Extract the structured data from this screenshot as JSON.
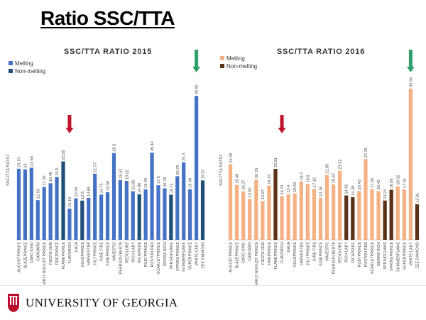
{
  "slide": {
    "title": "Ratio SSC/TTA",
    "footer_org": "UNIVERSITY OF GEORGIA"
  },
  "colors": {
    "2015_melting": "#4472C4",
    "2015_nonmelting": "#1F4E79",
    "2016_melting": "#F4B183",
    "2016_nonmelting": "#5B3216",
    "red_arrow": "#C0162C",
    "green_arrow": "#2E9E6A",
    "uga_red": "#BA0C2F"
  },
  "chart_data": [
    {
      "type": "bar",
      "title": "SSC/TTA RATIO 2015",
      "ylabel": "SSC/TTA RATIO",
      "xlabel": "",
      "legend": [
        {
          "name": "Melting",
          "color": "#4472C4"
        },
        {
          "name": "Non-melting",
          "color": "#1F4E79"
        }
      ],
      "legend_placement": "top-left",
      "grid": false,
      "ylim": [
        0,
        50
      ],
      "categories": [
        "AUGUSTPRINCE",
        "BLAZEPRINCE",
        "CARO KING",
        "CAROARD",
        "EARLY AUGUST PRINCE",
        "FIESTA GEM",
        "FIREPRINCE",
        "FLAMEPRINCE",
        "FLAVORICH",
        "GALA",
        "GOLDPRINCE",
        "HARVESTER",
        "JULYPRINCE",
        "JUNE FIRE",
        "JUNEPRINCE",
        "MAJESTIC",
        "PEARSON BERTA",
        "REDGLOBE",
        "RICH LADY",
        "RICHPRIDE",
        "RUBYPRINCE",
        "RUSTON RED",
        "SCARLETPRINCE",
        "SIERRA RICH",
        "SPRINGFLAME",
        "SPRINGPRINCE",
        "SUMMERFLAME",
        "SUPERPRINCE",
        "WHITE LADY",
        "ZEE DIAMOND"
      ],
      "values": [
        23.19,
        23,
        23.56,
        12.93,
        17.26,
        18.46,
        20.5,
        25.58,
        10.18,
        13.54,
        12.8,
        13.68,
        21.57,
        14.75,
        15.56,
        28.3,
        19.52,
        19.22,
        15.85,
        14.86,
        16.46,
        28.44,
        17.8,
        16.79,
        14.72,
        20.75,
        25.3,
        16.49,
        46.95,
        19.37
      ],
      "groups": [
        "Melting",
        "Melting",
        "Melting",
        "Melting",
        "Melting",
        "Melting",
        "Melting",
        "Non-melting",
        "Melting",
        "Melting",
        "Non-melting",
        "Melting",
        "Melting",
        "Melting",
        "Melting",
        "Melting",
        "Melting",
        "Melting",
        "Melting",
        "Non-melting",
        "Melting",
        "Melting",
        "Melting",
        "Melting",
        "Non-melting",
        "Melting",
        "Melting",
        "Melting",
        "Melting",
        "Non-melting"
      ],
      "annotations": [
        {
          "type": "arrow",
          "color": "#C0162C",
          "category": "FLAVORICH"
        },
        {
          "type": "arrow",
          "color": "#2E9E6A",
          "category": "WHITE LADY"
        }
      ]
    },
    {
      "type": "bar",
      "title": "SSC/TTA RATIO 2016",
      "ylabel": "SSC/TTA RATIO",
      "xlabel": "",
      "legend": [
        {
          "name": "Melting",
          "color": "#F4B183"
        },
        {
          "name": "Non-melting",
          "color": "#5B3216"
        }
      ],
      "legend_placement": "top-left",
      "grid": false,
      "ylim": [
        0,
        55
      ],
      "categories": [
        "AUGUSTPRINCE",
        "BLAZEPRINCE",
        "CARO KING",
        "CAROARD",
        "EARLY AUGUST PRINCE",
        "FIESTA GEM",
        "FIREPRINCE",
        "FLAMEPRINCE",
        "FLAVORICH",
        "GALA",
        "GOLDPRINCE",
        "HARVESTER",
        "JULYPRINCE",
        "JUNE FIRE",
        "JUNEPRINCE",
        "MAJESTIC",
        "PEARSON BERTA",
        "REDGLOBE",
        "RICH LADY",
        "RICHPRIDE",
        "RUBYPRINCE",
        "RUSTON RED",
        "SCARLETPRINCE",
        "SIERRA RICH",
        "SPRINGFLAME",
        "SPRINGPRINCE",
        "SUMMERFLAME",
        "SUPERPRINCE",
        "WHITE LADY",
        "ZEE DIAMOND"
      ],
      "values": [
        25.46,
        18.48,
        16.37,
        13.82,
        20.33,
        13.07,
        18.25,
        23.91,
        14.74,
        15.4,
        15.63,
        19.7,
        18.8,
        17.18,
        14.16,
        21.85,
        18.67,
        23.32,
        14.95,
        14.38,
        16.43,
        27.19,
        17.05,
        16.43,
        13.24,
        16.88,
        18.02,
        17.01,
        50.94,
        12.01
      ],
      "groups": [
        "Melting",
        "Melting",
        "Melting",
        "Melting",
        "Melting",
        "Melting",
        "Melting",
        "Non-melting",
        "Melting",
        "Melting",
        "Melting",
        "Melting",
        "Melting",
        "Melting",
        "Melting",
        "Melting",
        "Melting",
        "Melting",
        "Non-melting",
        "Non-melting",
        "Melting",
        "Melting",
        "Melting",
        "Melting",
        "Non-melting",
        "Non-melting",
        "Melting",
        "Melting",
        "Melting",
        "Non-melting"
      ],
      "annotations": [
        {
          "type": "arrow",
          "color": "#C0162C",
          "category": "FLAVORICH"
        },
        {
          "type": "arrow",
          "color": "#2E9E6A",
          "category": "WHITE LADY"
        }
      ]
    }
  ]
}
